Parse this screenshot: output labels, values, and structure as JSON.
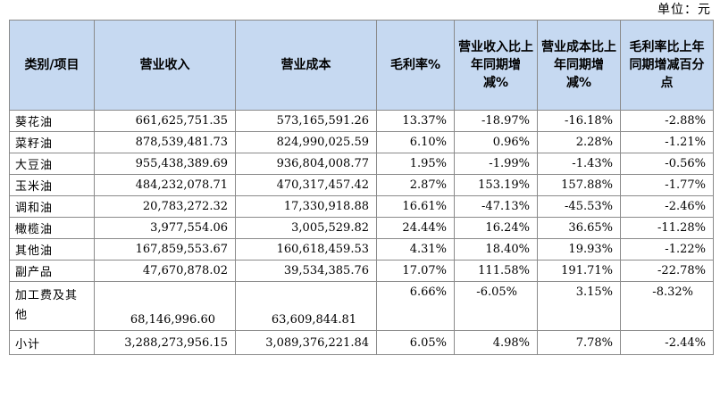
{
  "unit_label": "单位：元",
  "headers": {
    "category": "类别/项目",
    "revenue": "营业收入",
    "cost": "营业成本",
    "margin": "毛利率%",
    "rev_change": "营业收入比上年同期增减%",
    "cost_change": "营业成本比上年同期增减%",
    "margin_change": "毛利率比上年同期增减百分点"
  },
  "rows": [
    {
      "category": "葵花油",
      "revenue": "661,625,751.35",
      "cost": "573,165,591.26",
      "margin": "13.37%",
      "rev_change": "-18.97%",
      "cost_change": "-16.18%",
      "margin_change": "-2.88%"
    },
    {
      "category": "菜籽油",
      "revenue": "878,539,481.73",
      "cost": "824,990,025.59",
      "margin": "6.10%",
      "rev_change": "0.96%",
      "cost_change": "2.28%",
      "margin_change": "-1.21%"
    },
    {
      "category": "大豆油",
      "revenue": "955,438,389.69",
      "cost": "936,804,008.77",
      "margin": "1.95%",
      "rev_change": "-1.99%",
      "cost_change": "-1.43%",
      "margin_change": "-0.56%"
    },
    {
      "category": "玉米油",
      "revenue": "484,232,078.71",
      "cost": "470,317,457.42",
      "margin": "2.87%",
      "rev_change": "153.19%",
      "cost_change": "157.88%",
      "margin_change": "-1.77%"
    },
    {
      "category": "调和油",
      "revenue": "20,783,272.32",
      "cost": "17,330,918.88",
      "margin": "16.61%",
      "rev_change": "-47.13%",
      "cost_change": "-45.53%",
      "margin_change": "-2.46%"
    },
    {
      "category": "橄榄油",
      "revenue": "3,977,554.06",
      "cost": "3,005,529.82",
      "margin": "24.44%",
      "rev_change": "16.24%",
      "cost_change": "36.65%",
      "margin_change": "-11.28%"
    },
    {
      "category": "其他油",
      "revenue": "167,859,553.67",
      "cost": "160,618,459.53",
      "margin": "4.31%",
      "rev_change": "18.40%",
      "cost_change": "19.93%",
      "margin_change": "-1.22%"
    },
    {
      "category": "副产品",
      "revenue": "47,670,878.02",
      "cost": "39,534,385.76",
      "margin": "17.07%",
      "rev_change": "111.58%",
      "cost_change": "191.71%",
      "margin_change": "-22.78%"
    },
    {
      "category": "加工费及其他",
      "revenue": "68,146,996.60",
      "cost": "63,609,844.81",
      "margin": "6.66%",
      "rev_change": "-6.05%",
      "cost_change": "3.15%",
      "margin_change": "-8.32%"
    }
  ],
  "total": {
    "category": "小计",
    "revenue": "3,288,273,956.15",
    "cost": "3,089,376,221.84",
    "margin": "6.05%",
    "rev_change": "4.98%",
    "cost_change": "7.78%",
    "margin_change": "-2.44%"
  }
}
